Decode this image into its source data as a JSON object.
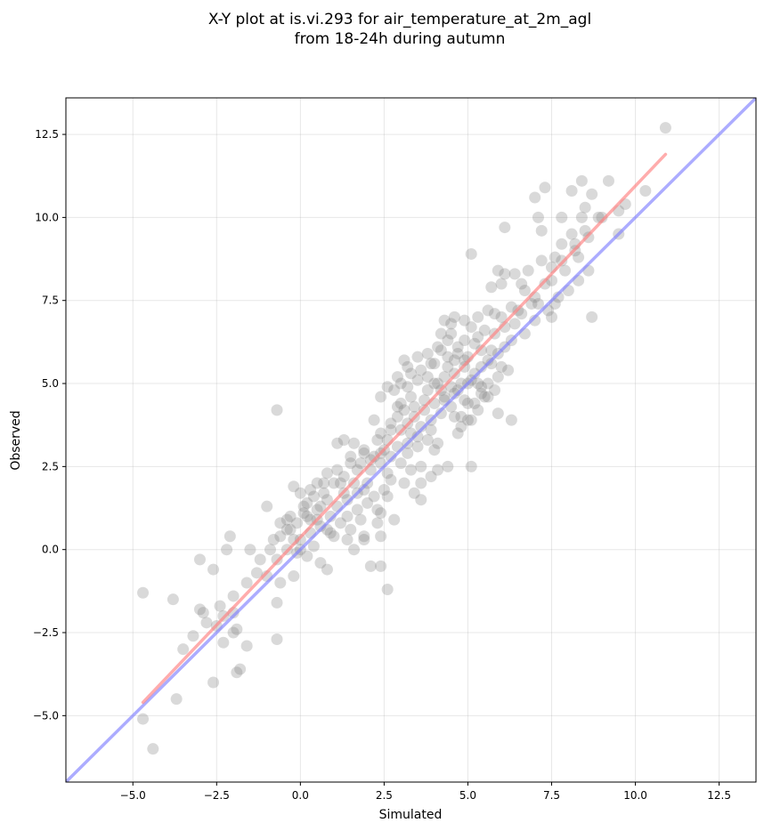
{
  "chart_data": {
    "type": "scatter",
    "title_line1": "X-Y plot at is.vi.293 for air_temperature_at_2m_agl",
    "title_line2": "from 18-24h during autumn",
    "xlabel": "Simulated",
    "ylabel": "Observed",
    "xlim": [
      -7.0,
      13.6
    ],
    "ylim": [
      -7.0,
      13.6
    ],
    "xticks": [
      -5.0,
      -2.5,
      0.0,
      2.5,
      5.0,
      7.5,
      10.0,
      12.5
    ],
    "yticks": [
      -5.0,
      -2.5,
      0.0,
      2.5,
      5.0,
      7.5,
      10.0,
      12.5
    ],
    "xtick_labels": [
      "−5.0",
      "−2.5",
      "0.0",
      "2.5",
      "5.0",
      "7.5",
      "10.0",
      "12.5"
    ],
    "ytick_labels": [
      "−5.0",
      "−2.5",
      "0.0",
      "2.5",
      "5.0",
      "7.5",
      "10.0",
      "12.5"
    ],
    "grid": true,
    "colors": {
      "points": "#808080",
      "fit_line": "#ff7f7f",
      "identity_line": "#7f7fff"
    },
    "fit_line": {
      "x": [
        -4.7,
        10.9
      ],
      "y": [
        -4.6,
        11.9
      ]
    },
    "identity_line": {
      "x": [
        -7.0,
        13.6
      ],
      "y": [
        -7.0,
        13.6
      ]
    },
    "points": [
      [
        10.9,
        12.7
      ],
      [
        9.7,
        10.4
      ],
      [
        10.3,
        10.8
      ],
      [
        9.5,
        10.2
      ],
      [
        9.2,
        11.1
      ],
      [
        8.4,
        11.1
      ],
      [
        8.7,
        10.7
      ],
      [
        8.1,
        10.8
      ],
      [
        7.3,
        10.9
      ],
      [
        7.0,
        10.6
      ],
      [
        7.1,
        10.0
      ],
      [
        7.8,
        10.0
      ],
      [
        8.4,
        10.0
      ],
      [
        8.5,
        10.3
      ],
      [
        8.9,
        10.0
      ],
      [
        7.2,
        9.6
      ],
      [
        8.1,
        9.5
      ],
      [
        7.8,
        9.2
      ],
      [
        7.6,
        8.8
      ],
      [
        8.3,
        8.8
      ],
      [
        7.2,
        8.7
      ],
      [
        7.5,
        8.5
      ],
      [
        6.8,
        8.4
      ],
      [
        6.4,
        8.3
      ],
      [
        6.1,
        8.3
      ],
      [
        5.9,
        8.4
      ],
      [
        6.0,
        8.0
      ],
      [
        5.7,
        7.9
      ],
      [
        6.7,
        7.8
      ],
      [
        7.1,
        7.4
      ],
      [
        7.6,
        7.4
      ],
      [
        7.5,
        7.0
      ],
      [
        8.7,
        7.0
      ],
      [
        5.1,
        8.9
      ],
      [
        6.1,
        9.7
      ],
      [
        9.5,
        9.5
      ],
      [
        6.3,
        7.3
      ],
      [
        6.0,
        7.0
      ],
      [
        5.8,
        7.1
      ],
      [
        5.6,
        7.2
      ],
      [
        5.3,
        7.0
      ],
      [
        5.1,
        6.7
      ],
      [
        4.9,
        6.9
      ],
      [
        4.6,
        7.0
      ],
      [
        4.5,
        6.8
      ],
      [
        4.3,
        6.9
      ],
      [
        4.2,
        6.5
      ],
      [
        4.4,
        6.3
      ],
      [
        4.7,
        6.1
      ],
      [
        4.9,
        6.3
      ],
      [
        5.2,
        6.2
      ],
      [
        5.5,
        6.6
      ],
      [
        5.8,
        6.5
      ],
      [
        6.1,
        6.1
      ],
      [
        5.9,
        5.9
      ],
      [
        5.6,
        5.7
      ],
      [
        5.4,
        5.5
      ],
      [
        5.2,
        5.3
      ],
      [
        4.9,
        5.5
      ],
      [
        4.6,
        5.7
      ],
      [
        4.4,
        5.8
      ],
      [
        4.2,
        6.0
      ],
      [
        3.9,
        5.6
      ],
      [
        3.6,
        5.4
      ],
      [
        3.3,
        5.3
      ],
      [
        3.1,
        5.7
      ],
      [
        3.0,
        5.0
      ],
      [
        2.8,
        4.8
      ],
      [
        3.2,
        4.9
      ],
      [
        3.5,
        5.1
      ],
      [
        3.8,
        5.2
      ],
      [
        4.0,
        5.0
      ],
      [
        4.3,
        5.2
      ],
      [
        4.6,
        5.3
      ],
      [
        4.8,
        5.0
      ],
      [
        5.1,
        5.1
      ],
      [
        5.3,
        5.0
      ],
      [
        5.6,
        5.0
      ],
      [
        5.9,
        5.2
      ],
      [
        6.2,
        5.4
      ],
      [
        5.8,
        4.8
      ],
      [
        5.5,
        4.6
      ],
      [
        5.2,
        4.4
      ],
      [
        4.9,
        4.5
      ],
      [
        4.6,
        4.7
      ],
      [
        4.3,
        4.6
      ],
      [
        4.0,
        4.4
      ],
      [
        3.7,
        4.5
      ],
      [
        3.4,
        4.3
      ],
      [
        3.1,
        4.2
      ],
      [
        2.9,
        4.0
      ],
      [
        2.7,
        3.8
      ],
      [
        3.0,
        3.6
      ],
      [
        3.3,
        3.5
      ],
      [
        3.6,
        3.7
      ],
      [
        3.9,
        3.9
      ],
      [
        4.2,
        4.1
      ],
      [
        4.5,
        4.3
      ],
      [
        4.8,
        4.0
      ],
      [
        5.1,
        3.9
      ],
      [
        5.0,
        3.9
      ],
      [
        4.7,
        3.5
      ],
      [
        4.1,
        3.2
      ],
      [
        3.8,
        3.3
      ],
      [
        3.5,
        3.1
      ],
      [
        3.2,
        2.9
      ],
      [
        2.9,
        3.1
      ],
      [
        2.6,
        3.3
      ],
      [
        2.4,
        3.5
      ],
      [
        2.2,
        3.9
      ],
      [
        2.5,
        3.0
      ],
      [
        2.2,
        2.8
      ],
      [
        1.9,
        3.0
      ],
      [
        1.6,
        3.2
      ],
      [
        1.3,
        3.3
      ],
      [
        1.1,
        3.2
      ],
      [
        1.5,
        2.8
      ],
      [
        1.8,
        2.6
      ],
      [
        2.1,
        2.4
      ],
      [
        2.4,
        2.6
      ],
      [
        2.7,
        2.8
      ],
      [
        3.0,
        2.6
      ],
      [
        3.3,
        2.4
      ],
      [
        3.6,
        2.0
      ],
      [
        3.9,
        2.2
      ],
      [
        4.1,
        2.4
      ],
      [
        2.7,
        2.1
      ],
      [
        2.5,
        1.8
      ],
      [
        2.2,
        1.6
      ],
      [
        1.9,
        1.8
      ],
      [
        1.6,
        2.0
      ],
      [
        1.3,
        2.2
      ],
      [
        1.0,
        2.0
      ],
      [
        0.8,
        2.3
      ],
      [
        0.5,
        2.0
      ],
      [
        0.3,
        1.8
      ],
      [
        0.0,
        1.7
      ],
      [
        -0.2,
        1.9
      ],
      [
        0.2,
        1.4
      ],
      [
        0.5,
        1.2
      ],
      [
        0.8,
        1.5
      ],
      [
        1.1,
        1.3
      ],
      [
        1.4,
        1.0
      ],
      [
        1.7,
        1.2
      ],
      [
        2.0,
        1.4
      ],
      [
        2.3,
        1.2
      ],
      [
        2.6,
        1.6
      ],
      [
        3.1,
        2.0
      ],
      [
        3.4,
        1.7
      ],
      [
        2.4,
        1.1
      ],
      [
        1.8,
        0.9
      ],
      [
        1.5,
        0.6
      ],
      [
        1.2,
        0.8
      ],
      [
        0.9,
        0.5
      ],
      [
        0.6,
        0.7
      ],
      [
        0.3,
        0.5
      ],
      [
        0.0,
        0.3
      ],
      [
        -0.3,
        0.6
      ],
      [
        -0.6,
        0.4
      ],
      [
        -0.4,
        0.9
      ],
      [
        -0.1,
        0.8
      ],
      [
        0.2,
        1.0
      ],
      [
        0.5,
        0.9
      ],
      [
        0.8,
        0.6
      ],
      [
        1.6,
        0.0
      ],
      [
        1.9,
        0.3
      ],
      [
        2.4,
        0.4
      ],
      [
        2.1,
        -0.5
      ],
      [
        2.4,
        -0.5
      ],
      [
        2.6,
        -1.2
      ],
      [
        0.8,
        -0.6
      ],
      [
        0.6,
        -0.4
      ],
      [
        0.2,
        -0.2
      ],
      [
        -0.1,
        -0.1
      ],
      [
        -0.4,
        0.0
      ],
      [
        -0.7,
        -0.3
      ],
      [
        -1.0,
        -0.8
      ],
      [
        -0.7,
        -1.6
      ],
      [
        -0.6,
        -1.0
      ],
      [
        -0.7,
        -2.7
      ],
      [
        -0.2,
        -0.8
      ],
      [
        0.0,
        0.0
      ],
      [
        -1.0,
        1.3
      ],
      [
        -0.8,
        0.3
      ],
      [
        -0.7,
        4.2
      ],
      [
        -1.5,
        0.0
      ],
      [
        -1.3,
        -0.7
      ],
      [
        -1.6,
        -2.9
      ],
      [
        -1.9,
        -2.4
      ],
      [
        -2.0,
        -1.9
      ],
      [
        -2.1,
        0.4
      ],
      [
        -2.2,
        0.0
      ],
      [
        -2.3,
        -2.0
      ],
      [
        -2.3,
        -2.8
      ],
      [
        -2.5,
        -2.3
      ],
      [
        -2.6,
        -0.6
      ],
      [
        -2.6,
        -4.0
      ],
      [
        -2.9,
        -1.9
      ],
      [
        -3.0,
        -1.8
      ],
      [
        -3.0,
        -0.3
      ],
      [
        -1.8,
        -3.6
      ],
      [
        -1.9,
        -3.7
      ],
      [
        -2.0,
        -2.5
      ],
      [
        -3.7,
        -4.5
      ],
      [
        -3.8,
        -1.5
      ],
      [
        -4.4,
        -6.0
      ],
      [
        -4.7,
        -5.1
      ],
      [
        -4.7,
        -1.3
      ],
      [
        5.9,
        4.1
      ],
      [
        6.3,
        3.9
      ],
      [
        5.1,
        2.5
      ],
      [
        4.0,
        3.0
      ],
      [
        3.6,
        2.5
      ],
      [
        3.2,
        3.8
      ],
      [
        2.9,
        4.3
      ],
      [
        4.4,
        5.5
      ],
      [
        4.1,
        5.0
      ],
      [
        3.8,
        4.8
      ],
      [
        5.4,
        4.9
      ],
      [
        5.7,
        5.6
      ],
      [
        6.4,
        6.8
      ],
      [
        6.6,
        7.1
      ],
      [
        6.9,
        7.4
      ],
      [
        7.3,
        8.0
      ],
      [
        7.9,
        8.4
      ],
      [
        8.2,
        9.0
      ],
      [
        8.6,
        9.4
      ],
      [
        9.0,
        10.0
      ],
      [
        6.6,
        8.0
      ],
      [
        5.4,
        6.0
      ],
      [
        4.7,
        5.9
      ],
      [
        4.5,
        4.9
      ],
      [
        4.2,
        4.8
      ],
      [
        3.7,
        4.2
      ],
      [
        3.4,
        4.0
      ],
      [
        3.2,
        3.2
      ],
      [
        2.6,
        2.3
      ],
      [
        2.0,
        2.0
      ],
      [
        1.7,
        1.7
      ],
      [
        1.3,
        1.7
      ],
      [
        0.9,
        1.0
      ],
      [
        0.6,
        1.3
      ],
      [
        0.3,
        0.9
      ],
      [
        -0.2,
        0.3
      ],
      [
        0.4,
        0.1
      ],
      [
        1.0,
        0.4
      ],
      [
        1.4,
        0.3
      ],
      [
        1.9,
        0.4
      ],
      [
        2.3,
        0.8
      ],
      [
        2.8,
        0.9
      ],
      [
        3.6,
        1.5
      ],
      [
        4.4,
        2.5
      ],
      [
        4.8,
        3.7
      ],
      [
        5.3,
        4.2
      ],
      [
        5.6,
        4.6
      ],
      [
        6.0,
        5.5
      ],
      [
        6.3,
        6.3
      ],
      [
        6.7,
        6.5
      ],
      [
        7.0,
        6.9
      ],
      [
        7.4,
        7.2
      ],
      [
        7.7,
        7.6
      ],
      [
        8.0,
        7.8
      ],
      [
        8.3,
        8.1
      ],
      [
        8.6,
        8.4
      ],
      [
        3.9,
        3.6
      ],
      [
        4.6,
        4.0
      ],
      [
        5.0,
        4.4
      ],
      [
        5.4,
        4.7
      ],
      [
        4.3,
        4.5
      ],
      [
        3.5,
        3.4
      ],
      [
        2.4,
        2.9
      ],
      [
        2.1,
        2.7
      ],
      [
        1.7,
        2.4
      ],
      [
        1.2,
        2.0
      ],
      [
        1.4,
        1.5
      ],
      [
        0.7,
        1.7
      ],
      [
        0.1,
        1.1
      ],
      [
        -0.4,
        0.6
      ],
      [
        -0.9,
        0.0
      ],
      [
        -1.2,
        -0.3
      ],
      [
        -1.6,
        -1.0
      ],
      [
        -2.0,
        -1.4
      ],
      [
        -2.4,
        -1.7
      ],
      [
        -2.8,
        -2.2
      ],
      [
        -3.2,
        -2.6
      ],
      [
        -3.5,
        -3.0
      ],
      [
        4.0,
        5.6
      ],
      [
        4.9,
        5.7
      ],
      [
        5.7,
        6.0
      ],
      [
        6.1,
        6.7
      ],
      [
        6.5,
        7.2
      ],
      [
        7.0,
        7.6
      ],
      [
        7.5,
        8.1
      ],
      [
        7.8,
        8.7
      ],
      [
        8.2,
        9.2
      ],
      [
        8.5,
        9.6
      ],
      [
        3.3,
        4.6
      ],
      [
        3.0,
        4.4
      ],
      [
        2.7,
        3.6
      ],
      [
        2.3,
        3.3
      ],
      [
        1.9,
        2.9
      ],
      [
        1.5,
        2.6
      ],
      [
        1.1,
        2.4
      ],
      [
        0.7,
        2.0
      ],
      [
        0.4,
        1.6
      ],
      [
        0.1,
        1.3
      ],
      [
        -0.3,
        1.0
      ],
      [
        -0.6,
        0.8
      ],
      [
        5.0,
        5.8
      ],
      [
        5.3,
        6.4
      ],
      [
        4.5,
        6.5
      ],
      [
        4.1,
        6.1
      ],
      [
        3.8,
        5.9
      ],
      [
        3.5,
        5.8
      ],
      [
        3.2,
        5.5
      ],
      [
        2.9,
        5.2
      ],
      [
        2.6,
        4.9
      ],
      [
        2.4,
        4.6
      ],
      [
        4.7,
        4.8
      ],
      [
        5.0,
        5.0
      ]
    ]
  }
}
